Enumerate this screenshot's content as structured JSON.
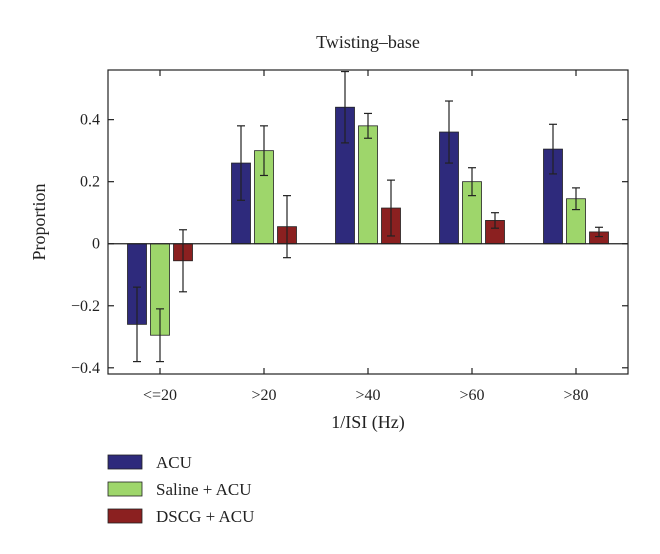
{
  "chart_data": {
    "type": "bar",
    "title": "Twisting–base",
    "xlabel": "1/ISI (Hz)",
    "ylabel": "Proportion",
    "ylim": [
      -0.42,
      0.56
    ],
    "yticks": [
      -0.4,
      -0.2,
      0,
      0.2,
      0.4
    ],
    "ytick_labels": [
      "−0.4",
      "−0.2",
      "0",
      "0.2",
      "0.4"
    ],
    "categories": [
      "<=20",
      ">20",
      ">40",
      ">60",
      ">80"
    ],
    "grid": false,
    "legend_position": "bottom-left",
    "series": [
      {
        "name": "ACU",
        "color": "#2e2a7c",
        "values": [
          -0.26,
          0.26,
          0.44,
          0.36,
          0.305
        ],
        "error": [
          0.12,
          0.12,
          0.115,
          0.1,
          0.08
        ]
      },
      {
        "name": "Saline + ACU",
        "color": "#9ed66b",
        "values": [
          -0.295,
          0.3,
          0.38,
          0.2,
          0.145
        ],
        "error": [
          0.085,
          0.08,
          0.04,
          0.045,
          0.035
        ]
      },
      {
        "name": "DSCG + ACU",
        "color": "#8b2020",
        "values": [
          -0.055,
          0.055,
          0.115,
          0.075,
          0.038
        ],
        "error": [
          0.1,
          0.1,
          0.09,
          0.025,
          0.015
        ]
      }
    ]
  }
}
